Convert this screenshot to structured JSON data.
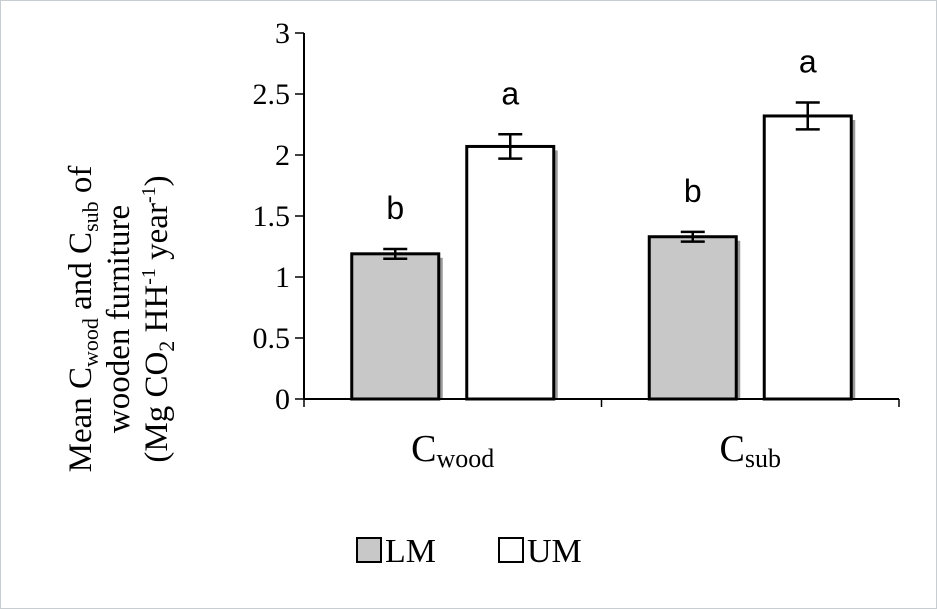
{
  "chart_data": {
    "type": "bar",
    "categories": [
      {
        "main": "C",
        "sub": "wood"
      },
      {
        "main": "C",
        "sub": "sub"
      }
    ],
    "series": [
      {
        "name": "LM",
        "values": [
          1.19,
          1.33
        ],
        "errors": [
          0.04,
          0.04
        ],
        "letters": [
          "b",
          "b"
        ],
        "color": "#c8c8c8"
      },
      {
        "name": "UM",
        "values": [
          2.07,
          2.32
        ],
        "errors": [
          0.1,
          0.11
        ],
        "letters": [
          "a",
          "a"
        ],
        "color": "#ffffff"
      }
    ],
    "ylim": [
      0,
      3
    ],
    "yticks": [
      "0",
      "0.5",
      "1",
      "1.5",
      "2",
      "2.5",
      "3"
    ],
    "ylabel": {
      "line1": {
        "a": "Mean C",
        "b": "wood",
        "c": " and C",
        "d": "sub",
        "e": " of"
      },
      "line2": "wooden furniture",
      "line3": {
        "a": "(Mg CO",
        "b": "2",
        "c": " HH",
        "d": "-1",
        "e": " year",
        "f": "-1",
        "g": ")"
      }
    },
    "legend_position": "bottom",
    "grid": false
  }
}
